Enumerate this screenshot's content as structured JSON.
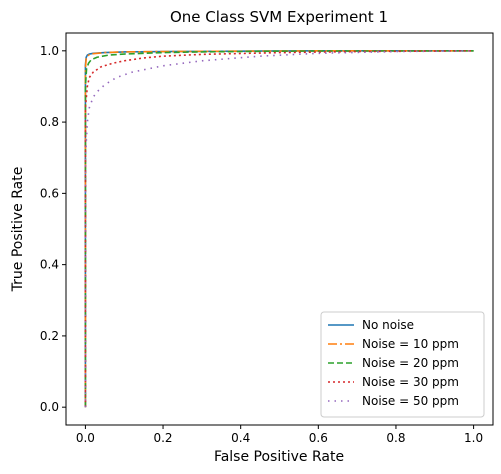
{
  "chart_data": {
    "type": "line",
    "title": "One Class SVM Experiment 1",
    "xlabel": "False Positive Rate",
    "ylabel": "True Positive Rate",
    "xlim": [
      -0.05,
      1.05
    ],
    "ylim": [
      -0.05,
      1.05
    ],
    "xticks": [
      0.0,
      0.2,
      0.4,
      0.6,
      0.8,
      1.0
    ],
    "yticks": [
      0.0,
      0.2,
      0.4,
      0.6,
      0.8,
      1.0
    ],
    "xtick_labels": [
      "0.0",
      "0.2",
      "0.4",
      "0.6",
      "0.8",
      "1.0"
    ],
    "ytick_labels": [
      "0.0",
      "0.2",
      "0.4",
      "0.6",
      "0.8",
      "1.0"
    ],
    "grid": false,
    "legend_position": "lower-right",
    "series": [
      {
        "name": "No noise",
        "color": "#1f77b4",
        "dash": "solid",
        "x": [
          0,
          0,
          0.002,
          0.005,
          0.01,
          0.02,
          0.05,
          0.1,
          0.2,
          0.4,
          0.6,
          1.0
        ],
        "y": [
          0,
          0.96,
          0.982,
          0.988,
          0.991,
          0.993,
          0.995,
          0.997,
          0.998,
          0.999,
          1.0,
          1.0
        ]
      },
      {
        "name": "Noise = 10 ppm",
        "color": "#ff7f0e",
        "dash": "dashdot",
        "x": [
          0,
          0,
          0.002,
          0.005,
          0.01,
          0.02,
          0.05,
          0.1,
          0.2,
          0.4,
          0.6,
          1.0
        ],
        "y": [
          0,
          0.95,
          0.978,
          0.985,
          0.989,
          0.992,
          0.995,
          0.997,
          0.998,
          0.999,
          1.0,
          1.0
        ]
      },
      {
        "name": "Noise = 20 ppm",
        "color": "#2ca02c",
        "dash": "dashed",
        "x": [
          0,
          0,
          0.003,
          0.008,
          0.015,
          0.03,
          0.06,
          0.1,
          0.2,
          0.3,
          0.5,
          1.0
        ],
        "y": [
          0,
          0.9,
          0.95,
          0.965,
          0.975,
          0.982,
          0.988,
          0.991,
          0.995,
          0.997,
          0.999,
          1.0
        ]
      },
      {
        "name": "Noise = 30 ppm",
        "color": "#d62728",
        "dash": "dotted",
        "x": [
          0,
          0,
          0.005,
          0.01,
          0.02,
          0.04,
          0.07,
          0.1,
          0.15,
          0.2,
          0.3,
          0.5,
          0.7,
          1.0
        ],
        "y": [
          0,
          0.84,
          0.9,
          0.925,
          0.94,
          0.955,
          0.965,
          0.972,
          0.98,
          0.985,
          0.99,
          0.995,
          0.998,
          1.0
        ]
      },
      {
        "name": "Noise = 50 ppm",
        "color": "#9467bd",
        "dash": "loosedot",
        "x": [
          0,
          0,
          0.005,
          0.01,
          0.02,
          0.03,
          0.05,
          0.08,
          0.12,
          0.2,
          0.3,
          0.45,
          0.6,
          0.8,
          1.0
        ],
        "y": [
          0,
          0.7,
          0.8,
          0.84,
          0.87,
          0.885,
          0.905,
          0.925,
          0.94,
          0.958,
          0.972,
          0.985,
          0.993,
          0.998,
          1.0
        ]
      }
    ]
  }
}
